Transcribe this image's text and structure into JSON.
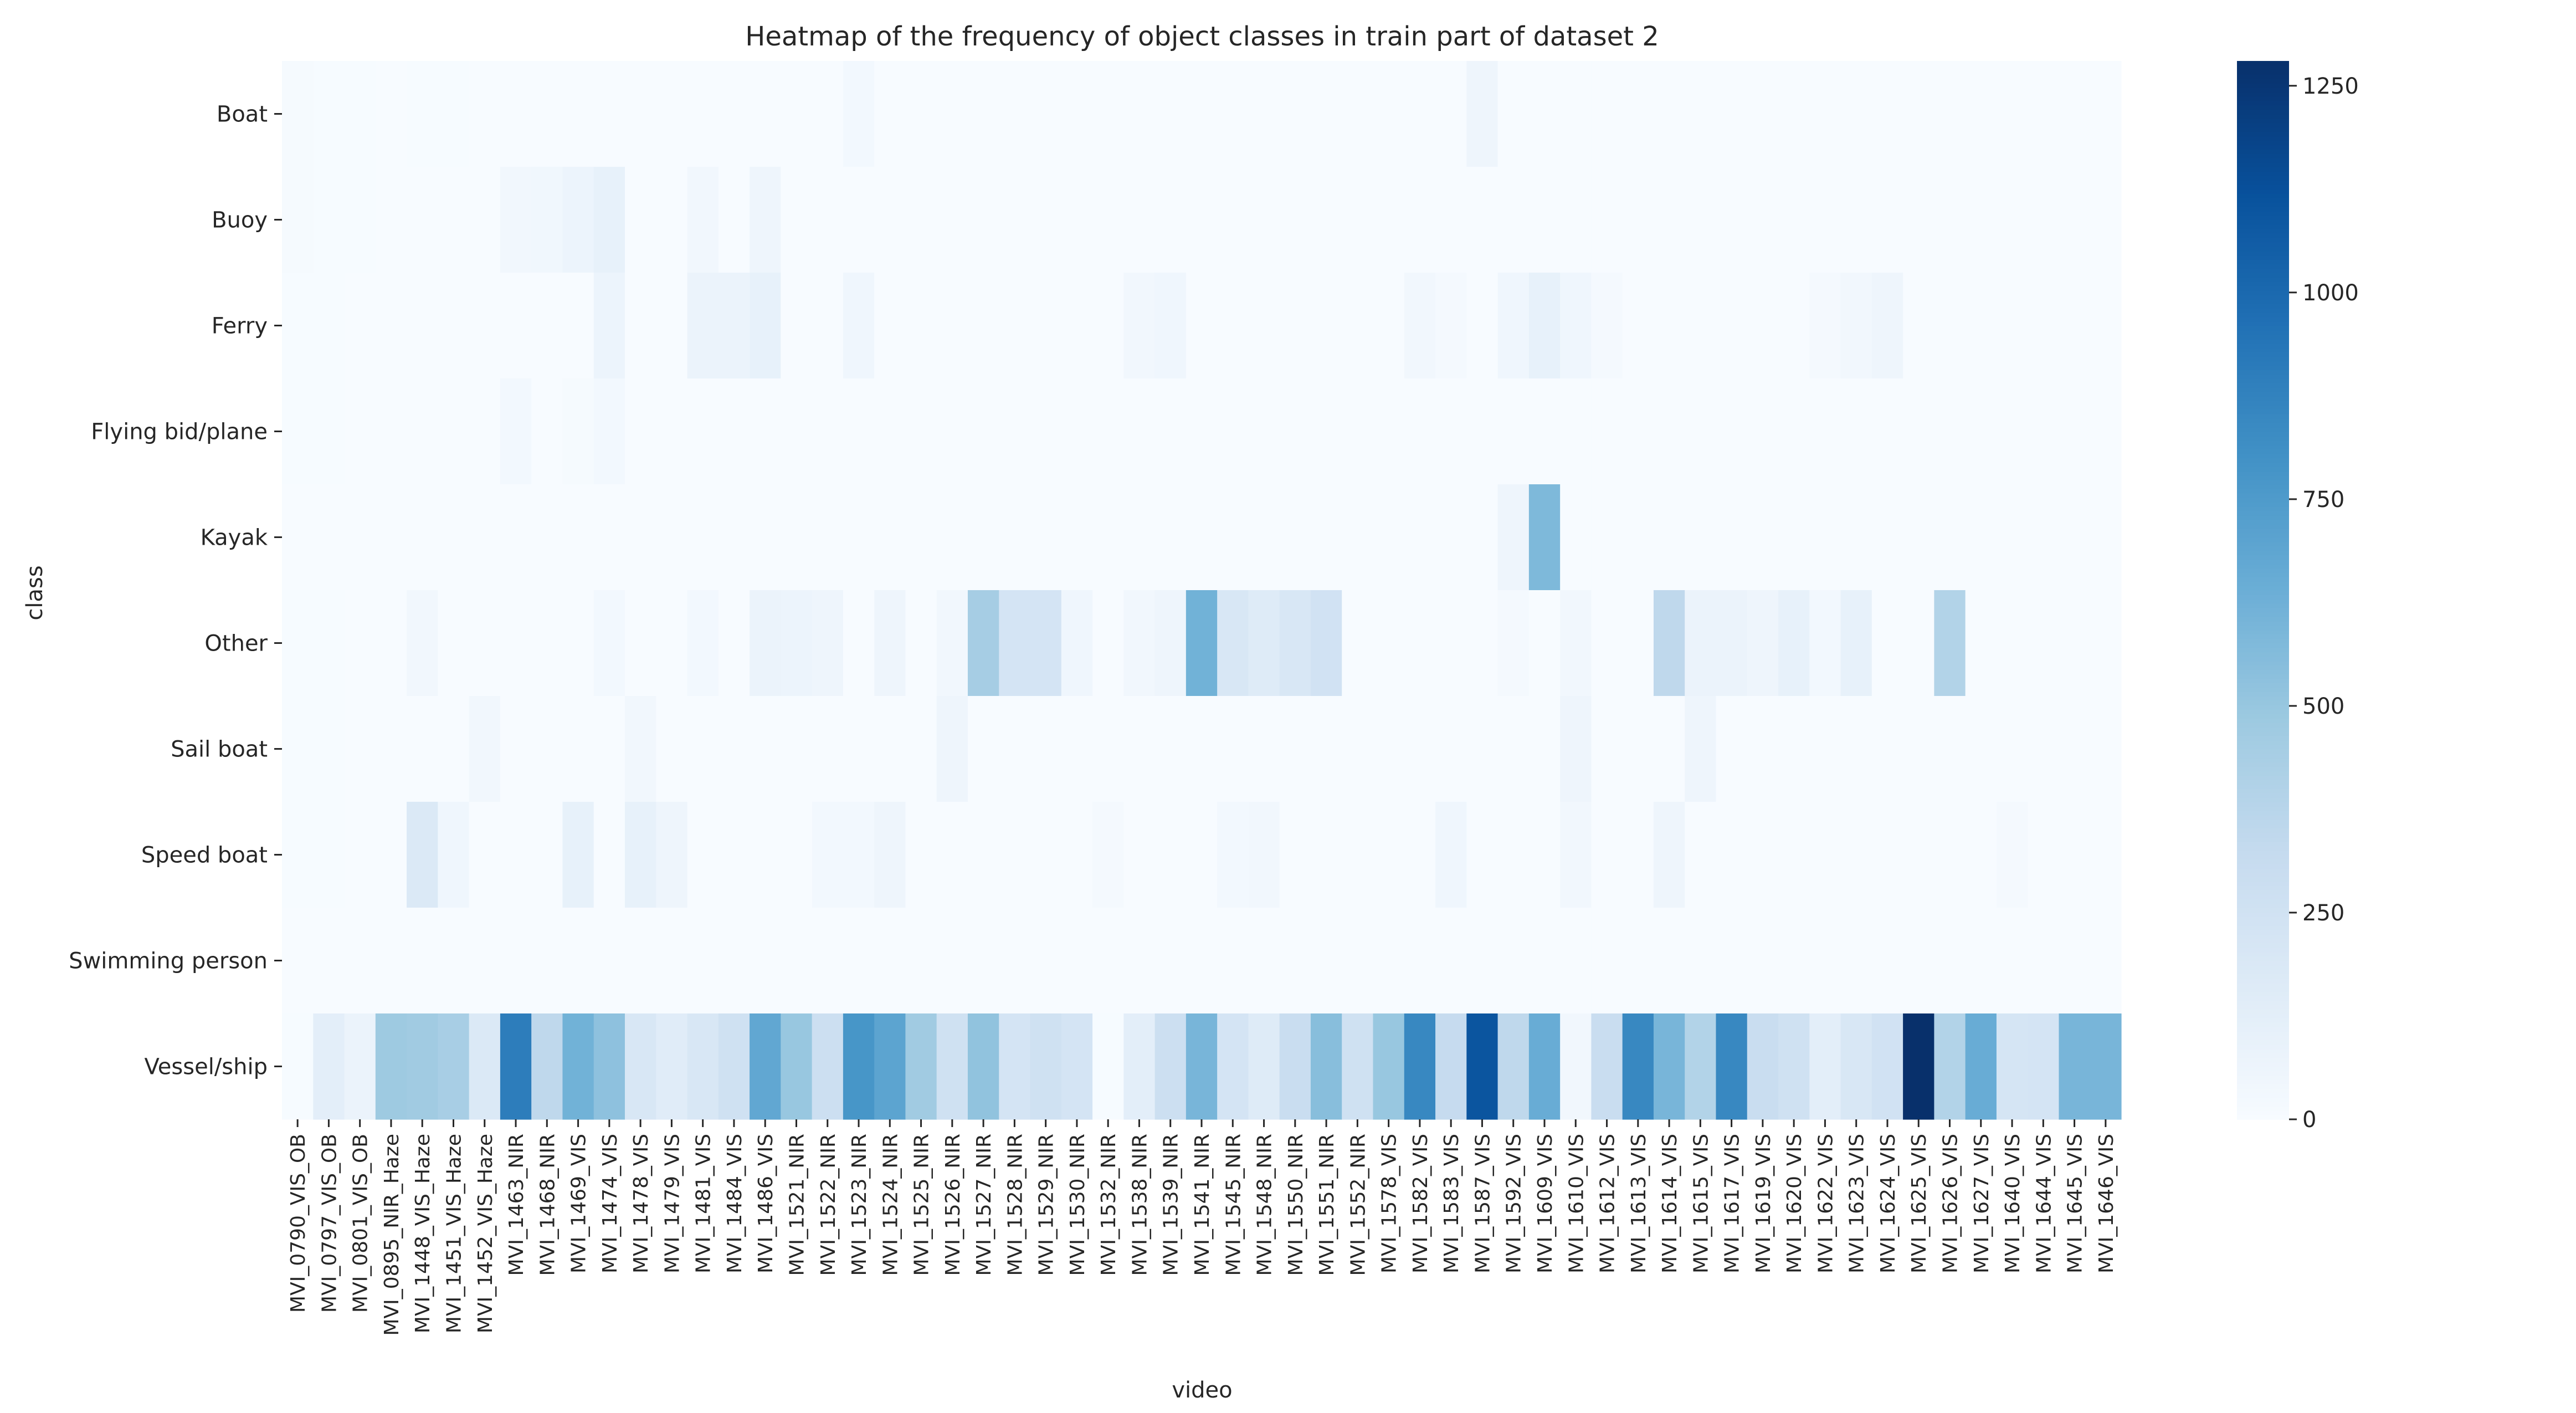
{
  "chart_data": {
    "type": "heatmap",
    "title": "Heatmap of the frequency of object classes in train part of dataset 2",
    "xlabel": "video",
    "ylabel": "class",
    "x": [
      "MVI_0790_VIS_OB",
      "MVI_0797_VIS_OB",
      "MVI_0801_VIS_OB",
      "MVI_0895_NIR_Haze",
      "MVI_1448_VIS_Haze",
      "MVI_1451_VIS_Haze",
      "MVI_1452_VIS_Haze",
      "MVI_1463_NIR",
      "MVI_1468_NIR",
      "MVI_1469_VIS",
      "MVI_1474_VIS",
      "MVI_1478_VIS",
      "MVI_1479_VIS",
      "MVI_1481_VIS",
      "MVI_1484_VIS",
      "MVI_1486_VIS",
      "MVI_1521_NIR",
      "MVI_1522_NIR",
      "MVI_1523_NIR",
      "MVI_1524_NIR",
      "MVI_1525_NIR",
      "MVI_1526_NIR",
      "MVI_1527_NIR",
      "MVI_1528_NIR",
      "MVI_1529_NIR",
      "MVI_1530_NIR",
      "MVI_1532_NIR",
      "MVI_1538_NIR",
      "MVI_1539_NIR",
      "MVI_1541_NIR",
      "MVI_1545_NIR",
      "MVI_1548_NIR",
      "MVI_1550_NIR",
      "MVI_1551_NIR",
      "MVI_1552_NIR",
      "MVI_1578_VIS",
      "MVI_1582_VIS",
      "MVI_1583_VIS",
      "MVI_1587_VIS",
      "MVI_1592_VIS",
      "MVI_1609_VIS",
      "MVI_1610_VIS",
      "MVI_1612_VIS",
      "MVI_1613_VIS",
      "MVI_1614_VIS",
      "MVI_1615_VIS",
      "MVI_1617_VIS",
      "MVI_1619_VIS",
      "MVI_1620_VIS",
      "MVI_1622_VIS",
      "MVI_1623_VIS",
      "MVI_1624_VIS",
      "MVI_1625_VIS",
      "MVI_1626_VIS",
      "MVI_1627_VIS",
      "MVI_1640_VIS",
      "MVI_1644_VIS",
      "MVI_1645_VIS",
      "MVI_1646_VIS"
    ],
    "y": [
      "Boat",
      "Buoy",
      "Ferry",
      "Flying bid/plane",
      "Kayak",
      "Other",
      "Sail boat",
      "Speed boat",
      "Swimming person",
      "Vessel/ship"
    ],
    "values": [
      [
        15,
        5,
        5,
        3,
        5,
        5,
        0,
        0,
        0,
        0,
        0,
        0,
        0,
        0,
        0,
        0,
        0,
        0,
        30,
        0,
        0,
        0,
        0,
        0,
        0,
        0,
        0,
        0,
        0,
        0,
        0,
        0,
        0,
        0,
        0,
        0,
        0,
        0,
        60,
        0,
        0,
        0,
        0,
        0,
        0,
        0,
        0,
        0,
        0,
        0,
        0,
        0,
        0,
        0,
        0,
        0,
        0,
        0,
        0
      ],
      [
        15,
        5,
        5,
        3,
        0,
        0,
        0,
        40,
        45,
        70,
        100,
        0,
        0,
        40,
        0,
        60,
        0,
        0,
        0,
        0,
        0,
        0,
        0,
        0,
        0,
        0,
        0,
        0,
        0,
        0,
        0,
        0,
        0,
        0,
        0,
        0,
        0,
        0,
        0,
        0,
        0,
        0,
        0,
        0,
        0,
        0,
        0,
        0,
        0,
        0,
        0,
        0,
        0,
        0,
        0,
        0,
        0,
        0,
        0
      ],
      [
        5,
        5,
        0,
        0,
        0,
        0,
        0,
        0,
        0,
        0,
        70,
        0,
        0,
        80,
        80,
        100,
        0,
        0,
        50,
        0,
        0,
        0,
        0,
        0,
        0,
        0,
        0,
        40,
        50,
        0,
        0,
        0,
        0,
        0,
        0,
        0,
        40,
        20,
        0,
        50,
        100,
        50,
        20,
        0,
        0,
        0,
        0,
        0,
        0,
        20,
        40,
        60,
        0,
        0,
        0,
        0,
        0,
        0,
        0
      ],
      [
        5,
        5,
        0,
        0,
        0,
        0,
        0,
        30,
        0,
        15,
        30,
        0,
        0,
        0,
        0,
        0,
        0,
        0,
        0,
        0,
        0,
        0,
        0,
        0,
        0,
        0,
        0,
        0,
        0,
        0,
        0,
        0,
        0,
        0,
        0,
        0,
        0,
        0,
        0,
        0,
        0,
        0,
        0,
        0,
        0,
        0,
        0,
        0,
        0,
        0,
        0,
        0,
        0,
        0,
        0,
        0,
        0,
        0,
        0
      ],
      [
        0,
        0,
        0,
        0,
        0,
        0,
        0,
        0,
        0,
        0,
        0,
        0,
        0,
        0,
        0,
        0,
        0,
        0,
        0,
        0,
        0,
        0,
        0,
        0,
        0,
        0,
        0,
        0,
        0,
        0,
        0,
        0,
        0,
        0,
        0,
        0,
        0,
        0,
        0,
        60,
        580,
        0,
        0,
        0,
        0,
        0,
        0,
        0,
        0,
        0,
        0,
        0,
        0,
        0,
        0,
        0,
        0,
        0,
        0
      ],
      [
        5,
        5,
        0,
        0,
        40,
        0,
        0,
        0,
        0,
        0,
        30,
        0,
        0,
        30,
        0,
        80,
        70,
        60,
        0,
        60,
        0,
        40,
        450,
        230,
        230,
        50,
        0,
        40,
        60,
        620,
        200,
        160,
        200,
        250,
        0,
        0,
        0,
        0,
        0,
        20,
        0,
        40,
        0,
        0,
        350,
        80,
        80,
        60,
        100,
        30,
        100,
        0,
        0,
        400,
        0,
        0,
        0,
        0,
        0
      ],
      [
        5,
        5,
        0,
        0,
        0,
        0,
        40,
        0,
        0,
        0,
        0,
        40,
        0,
        0,
        0,
        0,
        0,
        0,
        0,
        0,
        0,
        60,
        0,
        0,
        0,
        0,
        0,
        0,
        0,
        0,
        0,
        0,
        0,
        0,
        0,
        0,
        0,
        0,
        0,
        0,
        0,
        60,
        0,
        0,
        0,
        60,
        0,
        0,
        0,
        0,
        0,
        0,
        0,
        0,
        0,
        0,
        0,
        0,
        0
      ],
      [
        5,
        5,
        0,
        0,
        180,
        50,
        0,
        0,
        0,
        100,
        0,
        100,
        60,
        0,
        0,
        0,
        0,
        30,
        30,
        60,
        0,
        0,
        0,
        0,
        0,
        0,
        20,
        0,
        0,
        0,
        30,
        40,
        0,
        0,
        0,
        0,
        0,
        50,
        0,
        0,
        0,
        40,
        0,
        0,
        60,
        0,
        0,
        0,
        0,
        0,
        0,
        0,
        0,
        0,
        0,
        20,
        0,
        0,
        0
      ],
      [
        0,
        0,
        0,
        0,
        0,
        0,
        0,
        0,
        0,
        0,
        0,
        0,
        0,
        0,
        0,
        0,
        0,
        0,
        0,
        0,
        0,
        0,
        0,
        0,
        0,
        0,
        0,
        0,
        0,
        0,
        0,
        0,
        0,
        0,
        0,
        0,
        0,
        0,
        0,
        0,
        0,
        0,
        0,
        0,
        0,
        0,
        0,
        0,
        0,
        0,
        0,
        0,
        0,
        0,
        0,
        0,
        0,
        0,
        0
      ],
      [
        5,
        130,
        80,
        480,
        470,
        440,
        180,
        900,
        350,
        620,
        530,
        200,
        150,
        200,
        260,
        680,
        500,
        280,
        780,
        700,
        470,
        260,
        520,
        230,
        260,
        230,
        5,
        130,
        280,
        600,
        230,
        160,
        300,
        550,
        260,
        500,
        850,
        320,
        1100,
        350,
        650,
        40,
        300,
        850,
        600,
        400,
        850,
        300,
        260,
        130,
        200,
        250,
        1280,
        400,
        650,
        220,
        230,
        600,
        600
      ]
    ],
    "colorbar": {
      "min": 0,
      "max": 1280,
      "ticks": [
        0,
        250,
        500,
        750,
        1000,
        1250
      ]
    },
    "colormap": {
      "name": "Blues",
      "low": "#f7fbff",
      "high": "#08306b"
    },
    "grid": false,
    "legend": "colorbar-right"
  }
}
